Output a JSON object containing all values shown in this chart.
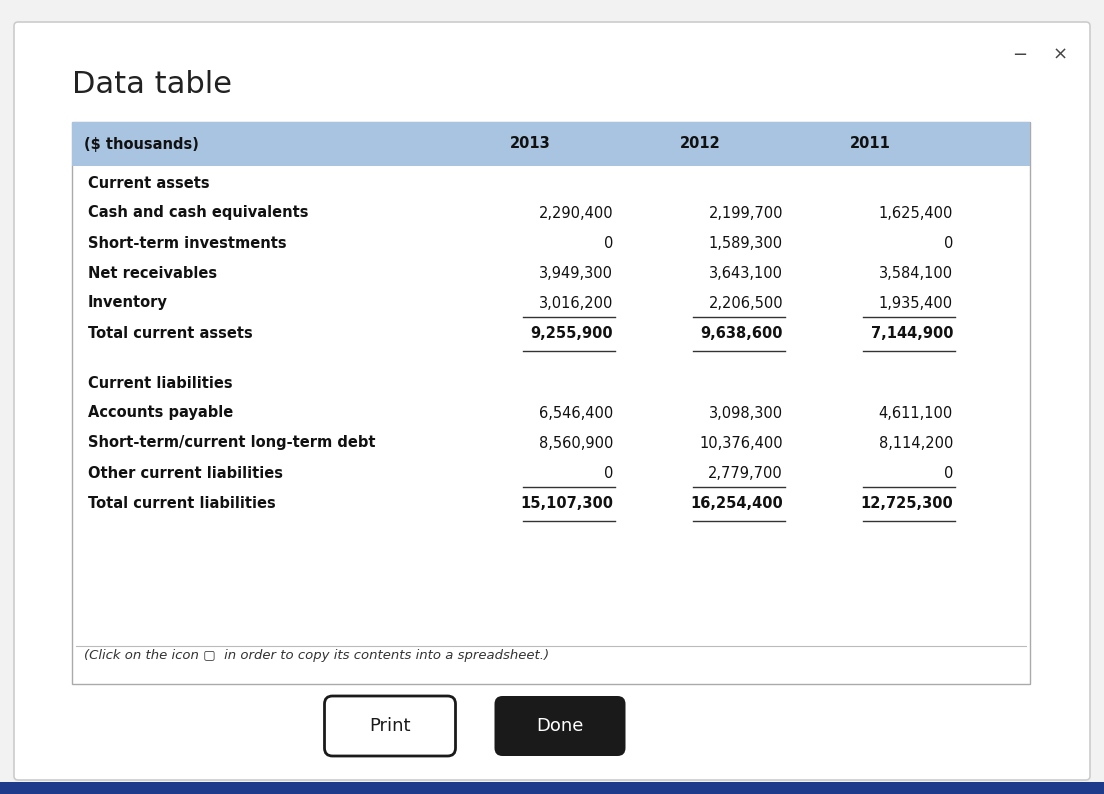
{
  "title": "Data table",
  "bg_color": "#f2f2f2",
  "window_bg": "#ffffff",
  "header_bg": "#a8c4e0",
  "bottom_bar_color": "#1e3a8a",
  "columns": [
    "($ thousands)",
    "2013",
    "2012",
    "2011"
  ],
  "rows": [
    {
      "label": "Current assets",
      "type": "section_header",
      "values": [
        "",
        "",
        ""
      ]
    },
    {
      "label": "Cash and cash equivalents",
      "type": "data",
      "values": [
        "2,290,400",
        "2,199,700",
        "1,625,400"
      ]
    },
    {
      "label": "Short-term investments",
      "type": "data",
      "values": [
        "0",
        "1,589,300",
        "0"
      ]
    },
    {
      "label": "Net receivables",
      "type": "data",
      "values": [
        "3,949,300",
        "3,643,100",
        "3,584,100"
      ]
    },
    {
      "label": "Inventory",
      "type": "data",
      "values": [
        "3,016,200",
        "2,206,500",
        "1,935,400"
      ]
    },
    {
      "label": "Total current assets",
      "type": "total",
      "values": [
        "9,255,900",
        "9,638,600",
        "7,144,900"
      ]
    },
    {
      "label": "",
      "type": "spacer",
      "values": [
        "",
        "",
        ""
      ]
    },
    {
      "label": "Current liabilities",
      "type": "section_header",
      "values": [
        "",
        "",
        ""
      ]
    },
    {
      "label": "Accounts payable",
      "type": "data",
      "values": [
        "6,546,400",
        "3,098,300",
        "4,611,100"
      ]
    },
    {
      "label": "Short-term/current long-term debt",
      "type": "data",
      "values": [
        "8,560,900",
        "10,376,400",
        "8,114,200"
      ]
    },
    {
      "label": "Other current liabilities",
      "type": "data",
      "values": [
        "0",
        "2,779,700",
        "0"
      ]
    },
    {
      "label": "Total current liabilities",
      "type": "total",
      "values": [
        "15,107,300",
        "16,254,400",
        "12,725,300"
      ]
    }
  ],
  "footer_italic": "(Click on the icon ▢  in order to copy its contents into a spreadsheet.)",
  "print_btn_text": "Print",
  "done_btn_text": "Done",
  "minus_symbol": "−",
  "x_symbol": "×"
}
